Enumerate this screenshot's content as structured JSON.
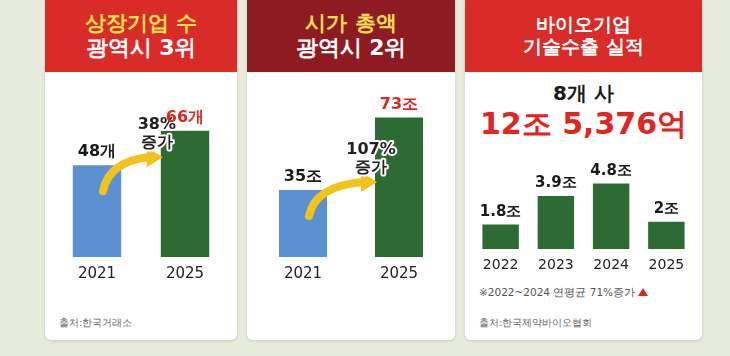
{
  "chart_data": [
    {
      "type": "bar",
      "title": [
        "상장기업 수",
        "광역시 3위"
      ],
      "categories": [
        "2021",
        "2025"
      ],
      "values": [
        48,
        66
      ],
      "value_labels": [
        "48개",
        "66개"
      ],
      "colors": [
        "#5b90d3",
        "#2e6b34"
      ],
      "data_labels": true,
      "annotation": [
        "38%",
        "증가"
      ],
      "ylim": [
        0,
        80
      ],
      "grid": false,
      "tick_labels": "x",
      "source": "출처:한국거래소"
    },
    {
      "type": "bar",
      "title": [
        "시가 총액",
        "광역시 2위"
      ],
      "categories": [
        "2021",
        "2025"
      ],
      "values": [
        35,
        73
      ],
      "value_labels": [
        "35조",
        "73조"
      ],
      "colors": [
        "#5b90d3",
        "#2e6b34"
      ],
      "data_labels": true,
      "annotation": [
        "107%",
        "증가"
      ],
      "ylim": [
        0,
        80
      ],
      "grid": false,
      "tick_labels": "x"
    },
    {
      "type": "bar",
      "title": [
        "바이오기업",
        "기술수출 실적"
      ],
      "subtitle": [
        "8개 사",
        "12조 5,376억"
      ],
      "categories": [
        "2022",
        "2023",
        "2024",
        "2025"
      ],
      "values": [
        1.8,
        3.9,
        4.8,
        2
      ],
      "value_labels": [
        "1.8조",
        "3.9조",
        "4.8조",
        "2조"
      ],
      "color": "#2e6b34",
      "data_labels": true,
      "note": "※2022~2024 연평균 71%증가",
      "ylim": [
        0,
        5.5
      ],
      "grid": false,
      "tick_labels": "x",
      "source": "출처:한국제약바이오협회"
    }
  ]
}
